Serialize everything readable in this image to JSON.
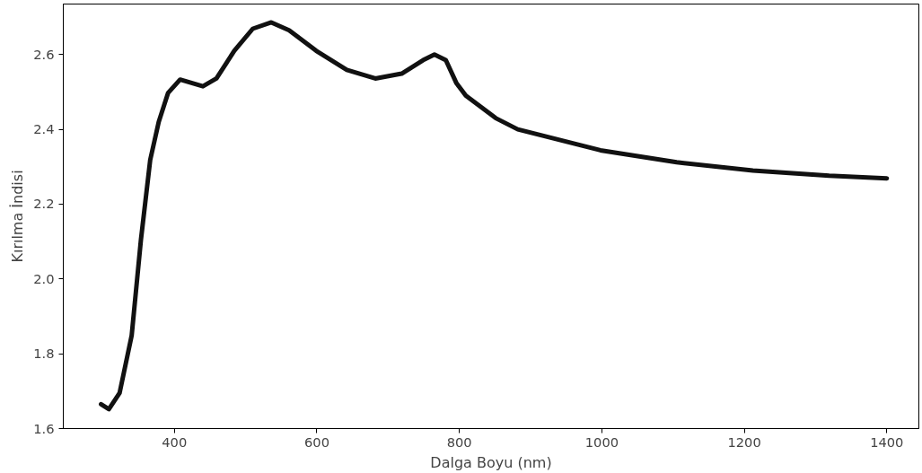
{
  "chart_data": {
    "type": "line",
    "xlabel": "Dalga Boyu (nm)",
    "ylabel": "Kırılma İndisi",
    "xlim": [
      244,
      1445
    ],
    "ylim": [
      1.6,
      2.735
    ],
    "xticks": [
      400,
      600,
      800,
      1000,
      1200,
      1400
    ],
    "yticks": [
      {
        "value": 1.6,
        "label": "1.6"
      },
      {
        "value": 1.8,
        "label": "1.8"
      },
      {
        "value": 2.0,
        "label": "2.0"
      },
      {
        "value": 2.2,
        "label": "2.2"
      },
      {
        "value": 2.4,
        "label": "2.4"
      },
      {
        "value": 2.6,
        "label": "2.6"
      }
    ],
    "grid": false,
    "line_style": "solid",
    "series": [
      {
        "color": "#111111",
        "x": [
          297,
          308,
          323,
          340,
          353,
          366,
          378,
          391,
          408,
          440,
          459,
          484,
          510,
          536,
          561,
          599,
          642,
          682,
          719,
          749,
          765,
          781,
          796,
          809,
          851,
          882,
          998,
          1105,
          1212,
          1319,
          1400
        ],
        "values": [
          1.665,
          1.652,
          1.695,
          1.849,
          2.105,
          2.318,
          2.42,
          2.497,
          2.533,
          2.515,
          2.536,
          2.61,
          2.669,
          2.686,
          2.665,
          2.61,
          2.559,
          2.536,
          2.549,
          2.585,
          2.6,
          2.585,
          2.523,
          2.49,
          2.43,
          2.4,
          2.344,
          2.312,
          2.29,
          2.276,
          2.269
        ]
      }
    ]
  }
}
